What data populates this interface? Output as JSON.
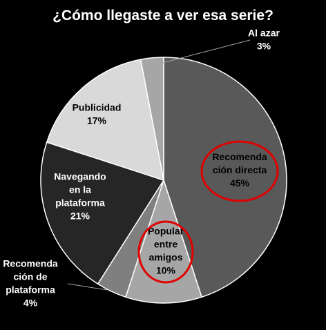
{
  "chart_data": {
    "type": "pie",
    "title": "¿Cómo llegaste a ver esa serie?",
    "slices": [
      {
        "label_lines": [
          "Recomenda",
          "ción directa",
          "45%"
        ],
        "value": 45,
        "color": "#595959",
        "text_color": "#000000",
        "highlighted": true
      },
      {
        "label_lines": [
          "Popular",
          "entre",
          "amigos",
          "10%"
        ],
        "value": 10,
        "color": "#a6a6a6",
        "text_color": "#000000",
        "highlighted": true
      },
      {
        "label_lines": [
          "Recomenda",
          "ción de",
          "plataforma",
          "4%"
        ],
        "value": 4,
        "color": "#7f7f7f",
        "text_color": "#ffffff",
        "highlighted": false
      },
      {
        "label_lines": [
          "Navegando",
          "en la",
          "plataforma",
          "21%"
        ],
        "value": 21,
        "color": "#262626",
        "text_color": "#ffffff",
        "highlighted": false
      },
      {
        "label_lines": [
          "Publicidad",
          "17%"
        ],
        "value": 17,
        "color": "#d9d9d9",
        "text_color": "#000000",
        "highlighted": false
      },
      {
        "label_lines": [
          "Al azar",
          "3%"
        ],
        "value": 3,
        "color": "#a6a6a6",
        "text_color": "#ffffff",
        "highlighted": false
      }
    ],
    "highlight_color": "#e00000",
    "slice_border_color": "#ffffff",
    "background": "#000000"
  }
}
